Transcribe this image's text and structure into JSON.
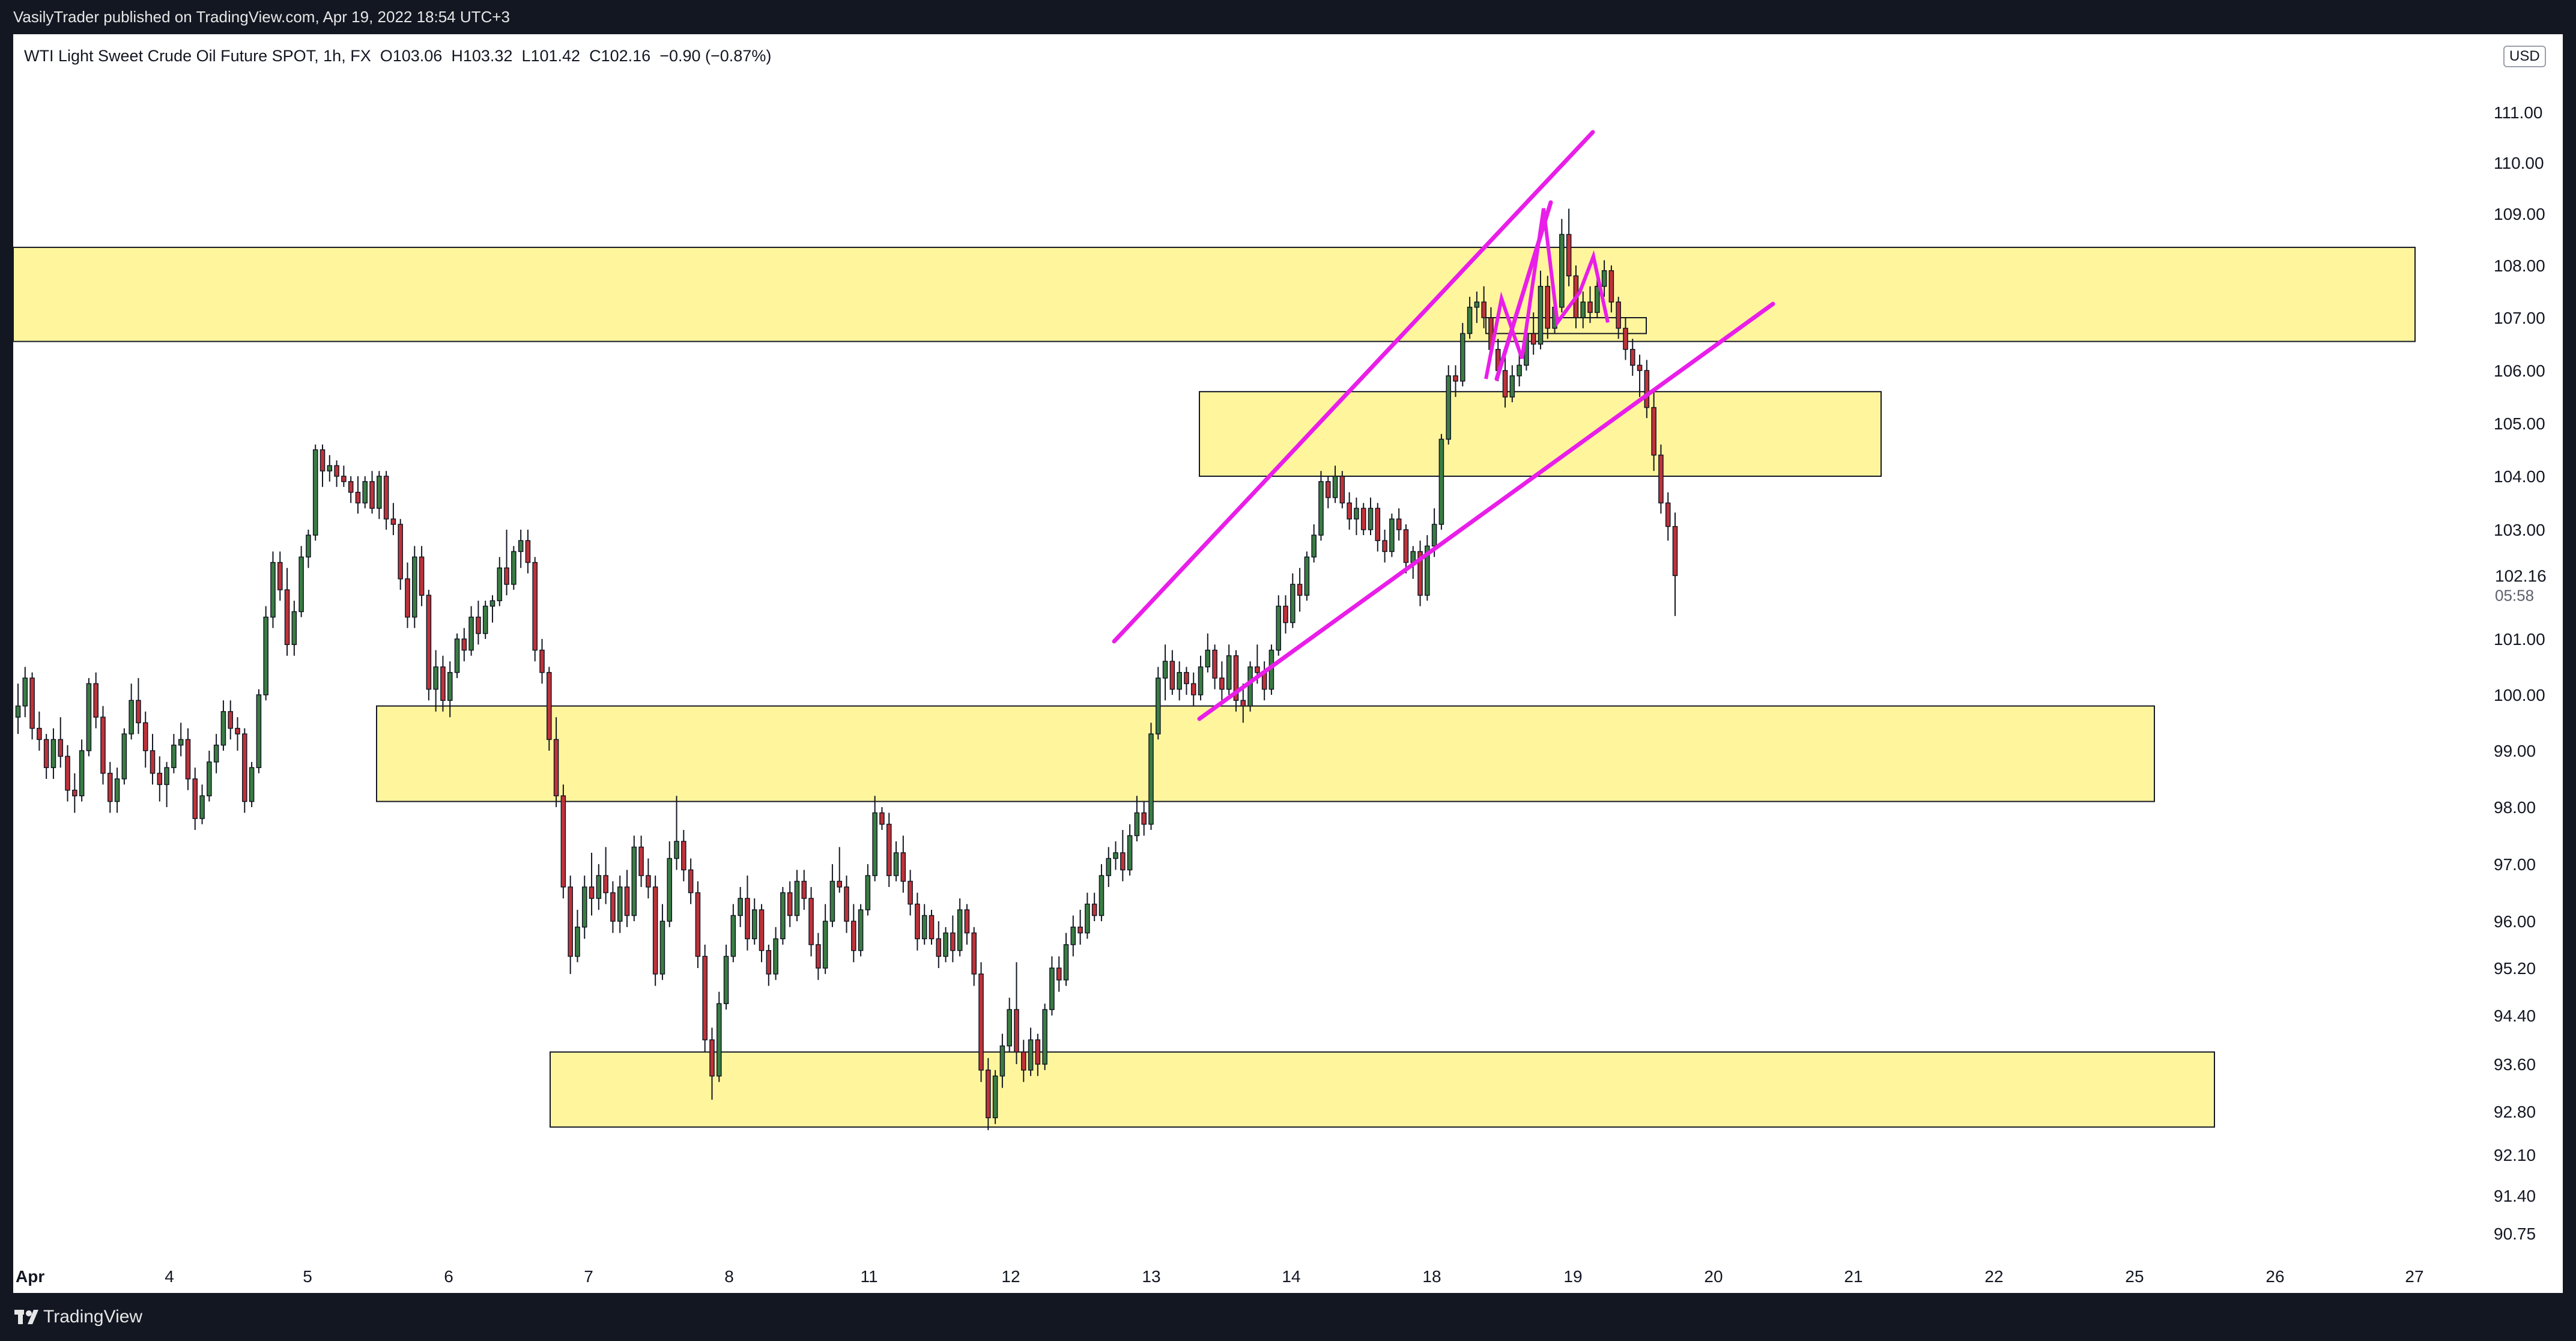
{
  "header": {
    "published": "VasilyTrader published on TradingView.com, Apr 19, 2022 18:54 UTC+3"
  },
  "footer": {
    "brand": "TradingView"
  },
  "legend": {
    "symbol": "WTI Light Sweet Crude Oil Future SPOT, 1h, FX",
    "open": "O103.06",
    "high": "H103.32",
    "low": "L101.42",
    "close": "C102.16",
    "change": "−0.90 (−0.87%)"
  },
  "currency": "USD",
  "chart_data": {
    "type": "candlestick",
    "y_axis_ticks": [
      "111.00",
      "110.00",
      "109.00",
      "108.00",
      "107.00",
      "106.00",
      "105.00",
      "104.00",
      "103.00",
      "101.00",
      "100.00",
      "99.00",
      "98.00",
      "97.00",
      "96.00",
      "95.20",
      "94.40",
      "93.60",
      "92.80",
      "92.10",
      "91.40",
      "90.75"
    ],
    "x_axis_ticks": [
      "Apr",
      "4",
      "5",
      "6",
      "7",
      "8",
      "11",
      "12",
      "13",
      "14",
      "18",
      "19",
      "20",
      "21",
      "22",
      "25",
      "26",
      "27"
    ],
    "last_price": {
      "value": "102.16",
      "countdown": "05:58"
    },
    "last_price_value": 102.16,
    "zones": [
      {
        "start": "Apr 1",
        "end": "Apr 27",
        "low": 106.55,
        "high": 108.35
      },
      {
        "start": "Apr 14",
        "end": "Apr 21",
        "low": 104.0,
        "high": 105.6
      },
      {
        "start": "Apr 5",
        "end": "Apr 25",
        "low": 98.1,
        "high": 99.8
      },
      {
        "start": "Apr 6",
        "end": "Apr 25",
        "low": 92.55,
        "high": 93.8
      },
      {
        "start": "Apr 18",
        "end": "Apr 19",
        "low": 106.7,
        "high": 107.0
      }
    ],
    "trend_lines": [
      {
        "from": {
          "date": "Apr 12",
          "value": 101.0
        },
        "to": {
          "date": "Apr 19",
          "value": 110.6
        }
      },
      {
        "from": {
          "date": "Apr 13",
          "value": 99.6
        },
        "to": {
          "date": "Apr 20",
          "value": 107.2
        }
      },
      {
        "from": {
          "date": "Apr 18",
          "value": 106.6
        },
        "to": {
          "date": "Apr 19",
          "value": 108.2
        }
      }
    ],
    "colors": {
      "up": "#26a69a",
      "down": "#ef5350",
      "zone_fill": "#fff59d",
      "zone_stroke": "#131722",
      "trend": "#e91ee9",
      "axis_text": "#131722"
    },
    "candles": [
      [
        99.6,
        100.2,
        99.3,
        99.8
      ],
      [
        99.8,
        100.5,
        99.6,
        100.3
      ],
      [
        100.3,
        100.4,
        99.2,
        99.4
      ],
      [
        99.4,
        99.7,
        99,
        99.2
      ],
      [
        99.2,
        99.3,
        98.5,
        98.7
      ],
      [
        98.7,
        99.4,
        98.5,
        99.2
      ],
      [
        99.2,
        99.6,
        98.7,
        98.9
      ],
      [
        98.9,
        99.1,
        98.1,
        98.3
      ],
      [
        98.3,
        98.6,
        97.9,
        98.2
      ],
      [
        98.2,
        99.2,
        98.1,
        99
      ],
      [
        99,
        100.3,
        98.9,
        100.2
      ],
      [
        100.2,
        100.4,
        99.4,
        99.6
      ],
      [
        99.6,
        99.8,
        98.4,
        98.6
      ],
      [
        98.6,
        98.8,
        97.9,
        98.1
      ],
      [
        98.1,
        98.7,
        97.9,
        98.5
      ],
      [
        98.5,
        99.4,
        98.4,
        99.3
      ],
      [
        99.3,
        100.2,
        99.2,
        99.9
      ],
      [
        99.9,
        100.3,
        99.3,
        99.5
      ],
      [
        99.5,
        99.7,
        98.7,
        99
      ],
      [
        99,
        99.3,
        98.4,
        98.6
      ],
      [
        98.6,
        98.9,
        98.1,
        98.4
      ],
      [
        98.4,
        98.8,
        98,
        98.7
      ],
      [
        98.7,
        99.3,
        98.6,
        99.1
      ],
      [
        99.1,
        99.5,
        98.9,
        99.2
      ],
      [
        99.2,
        99.4,
        98.3,
        98.5
      ],
      [
        98.5,
        98.7,
        97.6,
        97.8
      ],
      [
        97.8,
        98.4,
        97.7,
        98.2
      ],
      [
        98.2,
        99,
        98.1,
        98.8
      ],
      [
        98.8,
        99.3,
        98.6,
        99.1
      ],
      [
        99.1,
        99.9,
        99,
        99.7
      ],
      [
        99.7,
        99.9,
        99.2,
        99.4
      ],
      [
        99.4,
        99.6,
        99,
        99.3
      ],
      [
        99.3,
        99.4,
        97.9,
        98.1
      ],
      [
        98.1,
        98.8,
        98,
        98.7
      ],
      [
        98.7,
        100.1,
        98.6,
        100
      ],
      [
        100,
        101.6,
        99.9,
        101.4
      ],
      [
        101.4,
        102.6,
        101.2,
        102.4
      ],
      [
        102.4,
        102.6,
        101.7,
        101.9
      ],
      [
        101.9,
        102.3,
        100.7,
        100.9
      ],
      [
        100.9,
        101.7,
        100.7,
        101.5
      ],
      [
        101.5,
        102.7,
        101.4,
        102.5
      ],
      [
        102.5,
        103,
        102.3,
        102.9
      ],
      [
        102.9,
        104.6,
        102.8,
        104.5
      ],
      [
        104.5,
        104.6,
        103.8,
        104.1
      ],
      [
        104.1,
        104.4,
        103.9,
        104.2
      ],
      [
        104.2,
        104.3,
        103.8,
        104
      ],
      [
        104,
        104.2,
        103.8,
        103.9
      ],
      [
        103.9,
        104,
        103.5,
        103.7
      ],
      [
        103.7,
        104,
        103.3,
        103.5
      ],
      [
        103.5,
        104,
        103.4,
        103.9
      ],
      [
        103.9,
        104.1,
        103.3,
        103.4
      ],
      [
        103.4,
        104.1,
        103.2,
        104
      ],
      [
        104,
        104.1,
        103,
        103.2
      ],
      [
        103.2,
        103.5,
        102.9,
        103.1
      ],
      [
        103.1,
        103.2,
        101.9,
        102.1
      ],
      [
        102.1,
        102.4,
        101.2,
        101.4
      ],
      [
        101.4,
        102.7,
        101.2,
        102.5
      ],
      [
        102.5,
        102.7,
        101.6,
        101.8
      ],
      [
        101.8,
        101.9,
        99.9,
        100.1
      ],
      [
        100.1,
        100.8,
        99.7,
        100.5
      ],
      [
        100.5,
        100.7,
        99.7,
        99.9
      ],
      [
        99.9,
        100.6,
        99.6,
        100.4
      ],
      [
        100.4,
        101.1,
        100.3,
        101
      ],
      [
        101,
        101.2,
        100.6,
        100.8
      ],
      [
        100.8,
        101.6,
        100.7,
        101.4
      ],
      [
        101.4,
        101.7,
        100.9,
        101.1
      ],
      [
        101.1,
        101.7,
        101,
        101.6
      ],
      [
        101.6,
        101.8,
        101.3,
        101.7
      ],
      [
        101.7,
        102.5,
        101.6,
        102.3
      ],
      [
        102.3,
        103,
        101.8,
        102
      ],
      [
        102,
        102.7,
        101.9,
        102.6
      ],
      [
        102.6,
        103,
        102.3,
        102.8
      ],
      [
        102.8,
        103,
        102.2,
        102.4
      ],
      [
        102.4,
        102.5,
        100.6,
        100.8
      ],
      [
        100.8,
        101,
        100.2,
        100.4
      ],
      [
        100.4,
        100.5,
        99,
        99.2
      ],
      [
        99.2,
        99.6,
        98,
        98.2
      ],
      [
        98.2,
        98.4,
        96.4,
        96.6
      ],
      [
        96.6,
        96.8,
        95.1,
        95.4
      ],
      [
        95.4,
        96.2,
        95.3,
        95.9
      ],
      [
        95.9,
        96.8,
        95.7,
        96.6
      ],
      [
        96.6,
        97.2,
        96.1,
        96.4
      ],
      [
        96.4,
        97,
        96.2,
        96.8
      ],
      [
        96.8,
        97.3,
        96.3,
        96.5
      ],
      [
        96.5,
        96.7,
        95.8,
        96
      ],
      [
        96,
        96.8,
        95.8,
        96.6
      ],
      [
        96.6,
        96.9,
        95.9,
        96.1
      ],
      [
        96.1,
        97.5,
        96,
        97.3
      ],
      [
        97.3,
        97.5,
        96.6,
        96.8
      ],
      [
        96.8,
        97.1,
        96.4,
        96.6
      ],
      [
        96.6,
        96.8,
        94.9,
        95.1
      ],
      [
        95.1,
        96.3,
        95,
        96
      ],
      [
        96,
        97.4,
        95.9,
        97.1
      ],
      [
        97.1,
        98.2,
        96.9,
        97.4
      ],
      [
        97.4,
        97.6,
        96.7,
        96.9
      ],
      [
        96.9,
        97.1,
        96.3,
        96.5
      ],
      [
        96.5,
        96.7,
        95.2,
        95.4
      ],
      [
        95.4,
        95.6,
        93.8,
        94
      ],
      [
        94,
        94.2,
        93,
        93.4
      ],
      [
        93.4,
        94.8,
        93.3,
        94.6
      ],
      [
        94.6,
        95.6,
        94.5,
        95.4
      ],
      [
        95.4,
        96.3,
        95.3,
        96.1
      ],
      [
        96.1,
        96.6,
        95.9,
        96.4
      ],
      [
        96.4,
        96.8,
        95.5,
        95.7
      ],
      [
        95.7,
        96.4,
        95.6,
        96.2
      ],
      [
        96.2,
        96.3,
        95.3,
        95.5
      ],
      [
        95.5,
        95.6,
        94.9,
        95.1
      ],
      [
        95.1,
        95.9,
        95,
        95.7
      ],
      [
        95.7,
        96.6,
        95.6,
        96.5
      ],
      [
        96.5,
        96.7,
        95.9,
        96.1
      ],
      [
        96.1,
        96.9,
        96,
        96.7
      ],
      [
        96.7,
        96.9,
        96.2,
        96.4
      ],
      [
        96.4,
        96.6,
        95.4,
        95.6
      ],
      [
        95.6,
        95.8,
        95,
        95.2
      ],
      [
        95.2,
        96.3,
        95.1,
        96
      ],
      [
        96,
        97,
        95.9,
        96.7
      ],
      [
        96.7,
        97.3,
        96.5,
        96.6
      ],
      [
        96.6,
        96.8,
        95.8,
        96
      ],
      [
        96,
        96.3,
        95.3,
        95.5
      ],
      [
        95.5,
        96.3,
        95.4,
        96.2
      ],
      [
        96.2,
        97,
        96.1,
        96.8
      ],
      [
        96.8,
        98.2,
        96.7,
        97.9
      ],
      [
        97.9,
        98,
        97.6,
        97.7
      ],
      [
        97.7,
        97.9,
        96.6,
        96.8
      ],
      [
        96.8,
        97.4,
        96.7,
        97.2
      ],
      [
        97.2,
        97.5,
        96.5,
        96.7
      ],
      [
        96.7,
        96.9,
        96.1,
        96.3
      ],
      [
        96.3,
        96.5,
        95.5,
        95.7
      ],
      [
        95.7,
        96.3,
        95.6,
        96.1
      ],
      [
        96.1,
        96.2,
        95.6,
        95.7
      ],
      [
        95.7,
        96,
        95.2,
        95.4
      ],
      [
        95.4,
        95.9,
        95.3,
        95.8
      ],
      [
        95.8,
        96.1,
        95.3,
        95.5
      ],
      [
        95.5,
        96.4,
        95.4,
        96.2
      ],
      [
        96.2,
        96.3,
        95.6,
        95.8
      ],
      [
        95.8,
        95.9,
        94.9,
        95.1
      ],
      [
        95.1,
        95.3,
        93.3,
        93.5
      ],
      [
        93.5,
        93.7,
        92.5,
        92.7
      ],
      [
        92.7,
        93.5,
        92.6,
        93.4
      ],
      [
        93.4,
        94.1,
        93.2,
        93.9
      ],
      [
        93.9,
        94.7,
        93.8,
        94.5
      ],
      [
        94.5,
        95.3,
        93.6,
        93.8
      ],
      [
        93.8,
        94,
        93.3,
        93.5
      ],
      [
        93.5,
        94.2,
        93.4,
        94
      ],
      [
        94,
        94.1,
        93.4,
        93.6
      ],
      [
        93.6,
        94.6,
        93.5,
        94.5
      ],
      [
        94.5,
        95.4,
        94.4,
        95.2
      ],
      [
        95.2,
        95.4,
        94.8,
        95
      ],
      [
        95,
        95.8,
        94.9,
        95.6
      ],
      [
        95.6,
        96.1,
        95.4,
        95.9
      ],
      [
        95.9,
        96.2,
        95.6,
        95.8
      ],
      [
        95.8,
        96.5,
        95.7,
        96.3
      ],
      [
        96.3,
        96.5,
        96,
        96.1
      ],
      [
        96.1,
        97,
        96,
        96.8
      ],
      [
        96.8,
        97.3,
        96.6,
        97.1
      ],
      [
        97.1,
        97.4,
        96.9,
        97.2
      ],
      [
        97.2,
        97.6,
        96.7,
        96.9
      ],
      [
        96.9,
        97.7,
        96.8,
        97.5
      ],
      [
        97.5,
        98.2,
        97.4,
        97.9
      ],
      [
        97.9,
        98.1,
        97.5,
        97.7
      ],
      [
        97.7,
        99.5,
        97.6,
        99.3
      ],
      [
        99.3,
        100.5,
        99.2,
        100.3
      ],
      [
        100.3,
        100.9,
        99.9,
        100.6
      ],
      [
        100.6,
        100.8,
        100,
        100.1
      ],
      [
        100.1,
        100.6,
        99.9,
        100.4
      ],
      [
        100.4,
        100.5,
        100,
        100.2
      ],
      [
        100.2,
        100.4,
        99.8,
        100
      ],
      [
        100,
        100.7,
        99.9,
        100.5
      ],
      [
        100.5,
        101.1,
        100.4,
        100.8
      ],
      [
        100.8,
        100.9,
        100.1,
        100.3
      ],
      [
        100.3,
        100.6,
        99.9,
        100.1
      ],
      [
        100.1,
        100.9,
        100,
        100.7
      ],
      [
        100.7,
        100.8,
        99.7,
        99.9
      ],
      [
        99.9,
        100.2,
        99.5,
        99.8
      ],
      [
        99.8,
        100.6,
        99.7,
        100.5
      ],
      [
        100.5,
        100.9,
        100.2,
        100.4
      ],
      [
        100.4,
        100.6,
        99.9,
        100.1
      ],
      [
        100.1,
        100.9,
        100,
        100.8
      ],
      [
        100.8,
        101.8,
        100.7,
        101.6
      ],
      [
        101.6,
        101.8,
        101.1,
        101.3
      ],
      [
        101.3,
        102.2,
        101.2,
        102
      ],
      [
        102,
        102.3,
        101.5,
        101.8
      ],
      [
        101.8,
        102.6,
        101.7,
        102.5
      ],
      [
        102.5,
        103.1,
        102.4,
        102.9
      ],
      [
        102.9,
        104.1,
        102.8,
        103.9
      ],
      [
        103.9,
        104,
        103.4,
        103.6
      ],
      [
        103.6,
        104.2,
        103.5,
        104
      ],
      [
        104,
        104.1,
        103.4,
        103.5
      ],
      [
        103.5,
        103.7,
        103,
        103.2
      ],
      [
        103.2,
        103.6,
        102.9,
        103.4
      ],
      [
        103.4,
        103.5,
        102.9,
        103
      ],
      [
        103,
        103.6,
        102.9,
        103.4
      ],
      [
        103.4,
        103.5,
        102.6,
        102.8
      ],
      [
        102.8,
        103,
        102.4,
        102.6
      ],
      [
        102.6,
        103.3,
        102.5,
        103.2
      ],
      [
        103.2,
        103.4,
        102.8,
        103
      ],
      [
        103,
        103.1,
        102.2,
        102.4
      ],
      [
        102.4,
        102.7,
        102.1,
        102.6
      ],
      [
        102.6,
        102.8,
        101.6,
        101.8
      ],
      [
        101.8,
        102.9,
        101.7,
        102.7
      ],
      [
        102.7,
        103.4,
        102.5,
        103.1
      ],
      [
        103.1,
        104.8,
        103,
        104.7
      ],
      [
        104.7,
        106.1,
        104.6,
        105.9
      ],
      [
        105.9,
        106.1,
        105.5,
        105.8
      ],
      [
        105.8,
        106.9,
        105.7,
        106.7
      ],
      [
        106.7,
        107.4,
        106.6,
        107.2
      ],
      [
        107.2,
        107.5,
        106.9,
        107.3
      ],
      [
        107.3,
        107.6,
        106.8,
        107
      ],
      [
        107,
        107.2,
        106.2,
        106.4
      ],
      [
        106.4,
        106.6,
        105.8,
        106
      ],
      [
        106,
        106.3,
        105.3,
        105.5
      ],
      [
        105.5,
        106.1,
        105.4,
        105.9
      ],
      [
        105.9,
        106.3,
        105.7,
        106.1
      ],
      [
        106.1,
        106.9,
        106,
        106.7
      ],
      [
        106.7,
        107.1,
        106.3,
        106.5
      ],
      [
        106.5,
        107.9,
        106.4,
        107.6
      ],
      [
        107.6,
        107.8,
        106.6,
        106.8
      ],
      [
        106.8,
        107.4,
        106.7,
        107.2
      ],
      [
        107.2,
        108.9,
        107.1,
        108.6
      ],
      [
        108.6,
        109.1,
        107.6,
        107.8
      ],
      [
        107.8,
        108,
        106.8,
        107
      ],
      [
        107,
        107.5,
        106.8,
        107.3
      ],
      [
        107.3,
        107.6,
        106.9,
        107.1
      ],
      [
        107.1,
        107.8,
        107,
        107.6
      ],
      [
        107.6,
        108.1,
        107.4,
        107.9
      ],
      [
        107.9,
        108,
        107.1,
        107.3
      ],
      [
        107.3,
        107.4,
        106.6,
        106.8
      ],
      [
        106.8,
        107,
        106.2,
        106.4
      ],
      [
        106.4,
        106.6,
        105.9,
        106.1
      ],
      [
        106.1,
        106.3,
        105.5,
        106
      ],
      [
        106,
        106.2,
        105.1,
        105.3
      ],
      [
        105.3,
        105.6,
        104.1,
        104.4
      ],
      [
        104.4,
        104.6,
        103.3,
        103.5
      ],
      [
        103.5,
        103.7,
        102.8,
        103.06
      ],
      [
        103.06,
        103.32,
        101.42,
        102.16
      ]
    ]
  }
}
